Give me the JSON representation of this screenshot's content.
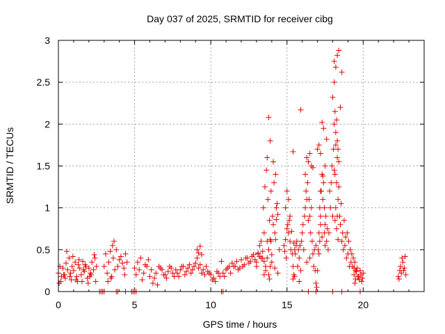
{
  "chart_data": {
    "type": "scatter",
    "title": "Day 037 of 2025, SRMTID for receiver cibg",
    "xlabel": "GPS time / hours",
    "ylabel": "SRMTID / TECUs",
    "xlim": [
      0,
      24
    ],
    "ylim": [
      0,
      3
    ],
    "xticks": [
      0,
      5,
      10,
      15,
      20
    ],
    "xtick_labels": [
      "0",
      "5",
      "10",
      "15",
      "20"
    ],
    "yticks": [
      0,
      0.5,
      1,
      1.5,
      2,
      2.5,
      3
    ],
    "ytick_labels": [
      "0",
      "0.5",
      "1",
      "1.5",
      "2",
      "2.5",
      "3"
    ],
    "grid": true,
    "marker": "+",
    "color": "#e00000",
    "series": [
      {
        "name": "cibg",
        "x": [
          0.0,
          0.1,
          0.2,
          0.3,
          0.4,
          0.5,
          0.6,
          0.7,
          0.8,
          0.9,
          1.0,
          1.1,
          1.2,
          1.3,
          1.4,
          1.5,
          1.6,
          1.7,
          1.8,
          1.9,
          2.0,
          2.1,
          2.2,
          2.3,
          2.4,
          2.5,
          0.15,
          0.35,
          0.55,
          0.75,
          0.95,
          1.15,
          1.35,
          1.55,
          1.75,
          1.95,
          2.15,
          2.35,
          0.05,
          0.45,
          0.85,
          1.25,
          1.65,
          2.05,
          2.45,
          2.7,
          2.8,
          2.9,
          3.0,
          3.0,
          3.1,
          3.2,
          3.3,
          3.4,
          3.5,
          3.6,
          3.7,
          3.8,
          3.9,
          4.0,
          4.1,
          4.2,
          4.3,
          4.4,
          4.5,
          3.25,
          3.55,
          3.65,
          4.35,
          3.45,
          3.8,
          3.9,
          4.4,
          4.8,
          4.9,
          5.0,
          5.1,
          5.0,
          5.2,
          5.4,
          5.6,
          5.8,
          6.0,
          6.2,
          6.4,
          6.6,
          6.8,
          7.0,
          7.2,
          7.4,
          7.6,
          7.8,
          8.0,
          8.2,
          8.4,
          8.6,
          8.8,
          9.0,
          9.2,
          9.4,
          9.6,
          9.8,
          5.1,
          5.3,
          5.5,
          5.7,
          5.9,
          6.1,
          6.3,
          6.5,
          6.7,
          6.9,
          7.1,
          7.3,
          7.5,
          7.7,
          7.9,
          8.1,
          8.3,
          8.5,
          8.7,
          8.9,
          9.1,
          9.3,
          9.5,
          9.7,
          9.9,
          9.1,
          9.2,
          9.3,
          9.4,
          10.0,
          10.2,
          10.4,
          10.6,
          10.8,
          11.0,
          11.2,
          11.4,
          11.6,
          11.8,
          12.0,
          12.2,
          12.4,
          12.6,
          12.8,
          13.0,
          13.2,
          13.4,
          10.1,
          10.3,
          10.5,
          10.7,
          10.9,
          11.1,
          11.3,
          11.5,
          11.7,
          11.9,
          12.1,
          12.3,
          12.5,
          12.7,
          12.9,
          13.1,
          13.3,
          13.5,
          10.7,
          10.8,
          13.0,
          13.1,
          13.2,
          13.3,
          13.4,
          13.5,
          13.6,
          13.7,
          13.8,
          13.9,
          14.0,
          14.1,
          14.2,
          14.3,
          14.4,
          14.5,
          13.45,
          13.55,
          13.65,
          13.75,
          13.85,
          13.95,
          14.05,
          14.15,
          14.25,
          14.35,
          13.5,
          13.6,
          13.7,
          13.8,
          13.9,
          14.0,
          14.2,
          14.4,
          13.7,
          13.8,
          13.9,
          14.1,
          14.3,
          13.85,
          13.95,
          14.25,
          14.8,
          14.85,
          14.9,
          14.95,
          15.0,
          15.05,
          15.1,
          15.15,
          15.2,
          15.25,
          15.3,
          15.35,
          15.4,
          15.45,
          15.5,
          14.9,
          15.0,
          15.1,
          15.2,
          15.4,
          15.45,
          15.5,
          15.55,
          15.6,
          15.65,
          15.7,
          15.75,
          15.8,
          15.85,
          15.9,
          15.4,
          15.8,
          15.9,
          15.95,
          16.0,
          16.05,
          16.1,
          16.15,
          16.2,
          16.25,
          16.3,
          16.35,
          16.4,
          16.45,
          16.5,
          16.55,
          16.6,
          16.65,
          16.7,
          16.75,
          16.8,
          16.85,
          16.9,
          16.2,
          16.3,
          16.4,
          16.5,
          16.6,
          16.7,
          16.3,
          16.5,
          16.9,
          16.95,
          17.0,
          17.05,
          17.1,
          17.15,
          17.2,
          17.25,
          17.3,
          17.35,
          17.4,
          17.45,
          17.5,
          17.55,
          17.6,
          17.65,
          17.7,
          17.75,
          17.0,
          17.1,
          17.2,
          17.3,
          17.4,
          17.5,
          17.6,
          17.1,
          17.15,
          17.2,
          17.3,
          17.5,
          17.2,
          17.35,
          17.45,
          17.8,
          17.85,
          17.9,
          17.95,
          18.0,
          18.05,
          18.1,
          18.15,
          18.2,
          18.25,
          18.3,
          18.35,
          18.4,
          18.45,
          18.5,
          18.55,
          18.6,
          18.65,
          18.7,
          18.75,
          18.8,
          18.85,
          18.9,
          18.95,
          19.0,
          19.05,
          19.1,
          19.15,
          19.2,
          19.25,
          19.3,
          19.35,
          19.4,
          19.45,
          19.5,
          18.0,
          18.1,
          18.2,
          18.3,
          18.4,
          18.5,
          18.6,
          18.1,
          18.15,
          18.2,
          18.25,
          18.3,
          18.35,
          18.1,
          18.15,
          18.2,
          18.25,
          18.3,
          18.35,
          18.4,
          19.4,
          19.5,
          19.6,
          19.7,
          19.8,
          19.9,
          20.0,
          19.45,
          19.55,
          19.65,
          19.75,
          19.85,
          19.95,
          22.3,
          22.4,
          22.5,
          22.6,
          22.7,
          22.8,
          22.35,
          22.45,
          22.55,
          22.65,
          22.75,
          16.4,
          16.9,
          18.0,
          18.6,
          19.8
        ],
        "y": [
          0.22,
          0.3,
          0.18,
          0.28,
          0.2,
          0.34,
          0.26,
          0.4,
          0.22,
          0.3,
          0.25,
          0.35,
          0.18,
          0.32,
          0.28,
          0.2,
          0.36,
          0.24,
          0.3,
          0.16,
          0.28,
          0.22,
          0.35,
          0.26,
          0.4,
          0.3,
          0.12,
          0.2,
          0.48,
          0.18,
          0.42,
          0.14,
          0.38,
          0.12,
          0.32,
          0.1,
          0.2,
          0.44,
          0.1,
          0.16,
          0.14,
          0.12,
          0.26,
          0.18,
          0.12,
          0.0,
          0.0,
          0.0,
          0.0,
          0.3,
          0.45,
          0.22,
          0.35,
          0.48,
          0.18,
          0.4,
          0.26,
          0.5,
          0.3,
          0.38,
          0.42,
          0.34,
          0.28,
          0.45,
          0.35,
          0.12,
          0.55,
          0.6,
          0.2,
          0.16,
          0.0,
          0.0,
          0.0,
          0.0,
          0.0,
          0.0,
          0.0,
          0.28,
          0.35,
          0.4,
          0.22,
          0.3,
          0.18,
          0.1,
          0.22,
          0.3,
          0.26,
          0.2,
          0.24,
          0.28,
          0.18,
          0.22,
          0.26,
          0.3,
          0.24,
          0.32,
          0.26,
          0.34,
          0.28,
          0.22,
          0.2,
          0.24,
          0.2,
          0.26,
          0.14,
          0.32,
          0.38,
          0.26,
          0.16,
          0.08,
          0.28,
          0.2,
          0.16,
          0.3,
          0.22,
          0.26,
          0.18,
          0.3,
          0.2,
          0.28,
          0.22,
          0.3,
          0.4,
          0.32,
          0.26,
          0.3,
          0.22,
          0.5,
          0.46,
          0.54,
          0.44,
          0.2,
          0.16,
          0.24,
          0.18,
          0.22,
          0.26,
          0.3,
          0.34,
          0.3,
          0.26,
          0.38,
          0.32,
          0.4,
          0.36,
          0.44,
          0.3,
          0.42,
          0.48,
          0.14,
          0.12,
          0.22,
          0.36,
          0.18,
          0.28,
          0.22,
          0.3,
          0.36,
          0.28,
          0.3,
          0.4,
          0.34,
          0.42,
          0.38,
          0.46,
          0.4,
          0.36,
          0.0,
          0.0,
          0.35,
          0.45,
          0.55,
          0.6,
          0.4,
          0.7,
          0.3,
          0.6,
          0.5,
          0.62,
          0.44,
          0.8,
          0.7,
          0.86,
          0.92,
          0.5,
          1.0,
          1.25,
          1.45,
          1.1,
          0.85,
          1.2,
          0.9,
          1.3,
          1.4,
          1.05,
          0.2,
          0.25,
          0.4,
          0.2,
          0.3,
          0.35,
          0.28,
          0.22,
          1.6,
          2.08,
          1.8,
          1.55,
          1.0,
          0.15,
          0.6,
          0.62,
          0.55,
          0.48,
          0.62,
          0.4,
          0.75,
          0.8,
          0.7,
          0.85,
          0.6,
          0.5,
          0.72,
          0.45,
          0.3,
          0.58,
          0.5,
          1.0,
          1.2,
          1.1,
          0.9,
          0.15,
          0.2,
          0.18,
          0.45,
          0.55,
          0.6,
          0.3,
          0.5,
          0.4,
          0.55,
          0.25,
          1.67,
          0.12,
          2.17,
          0.6,
          0.7,
          0.8,
          0.5,
          0.9,
          1.0,
          1.2,
          1.1,
          1.3,
          0.85,
          1.1,
          0.9,
          0.7,
          1.0,
          0.6,
          0.45,
          0.3,
          0.5,
          0.25,
          0.55,
          1.4,
          1.6,
          1.55,
          1.65,
          1.5,
          1.48,
          0.35,
          0.4,
          0.1,
          0.05,
          0.25,
          0.5,
          0.7,
          1.0,
          0.9,
          1.2,
          1.4,
          1.1,
          1.3,
          1.0,
          0.8,
          0.9,
          0.6,
          0.75,
          0.5,
          0.7,
          1.7,
          1.75,
          1.65,
          2.02,
          1.95,
          1.5,
          1.82,
          0.45,
          0.6,
          0.8,
          0.65,
          0.55,
          1.2,
          1.38,
          0.7,
          1.2,
          1.0,
          1.3,
          1.5,
          0.9,
          1.7,
          2.0,
          1.4,
          1.75,
          1.3,
          1.6,
          1.1,
          1.25,
          0.9,
          0.8,
          1.05,
          0.6,
          0.7,
          0.5,
          0.85,
          0.55,
          0.65,
          0.4,
          0.7,
          0.45,
          0.6,
          0.3,
          0.5,
          0.35,
          0.45,
          0.3,
          0.4,
          0.28,
          0.35,
          0.25,
          2.32,
          2.5,
          2.68,
          2.82,
          2.88,
          2.2,
          2.62,
          2.75,
          2.15,
          1.9,
          2.05,
          1.8,
          1.7,
          1.45,
          0.85,
          1.0,
          0.75,
          0.9,
          0.62,
          1.55,
          0.2,
          0.15,
          0.28,
          0.18,
          0.25,
          0.12,
          0.22,
          0.1,
          0.24,
          0.18,
          0.14,
          0.2,
          0.16,
          0.18,
          0.25,
          0.22,
          0.35,
          0.28,
          0.2,
          0.15,
          0.3,
          0.4,
          0.25,
          0.42,
          0.0,
          0.0,
          0.0,
          0.0,
          0.0
        ]
      }
    ]
  }
}
